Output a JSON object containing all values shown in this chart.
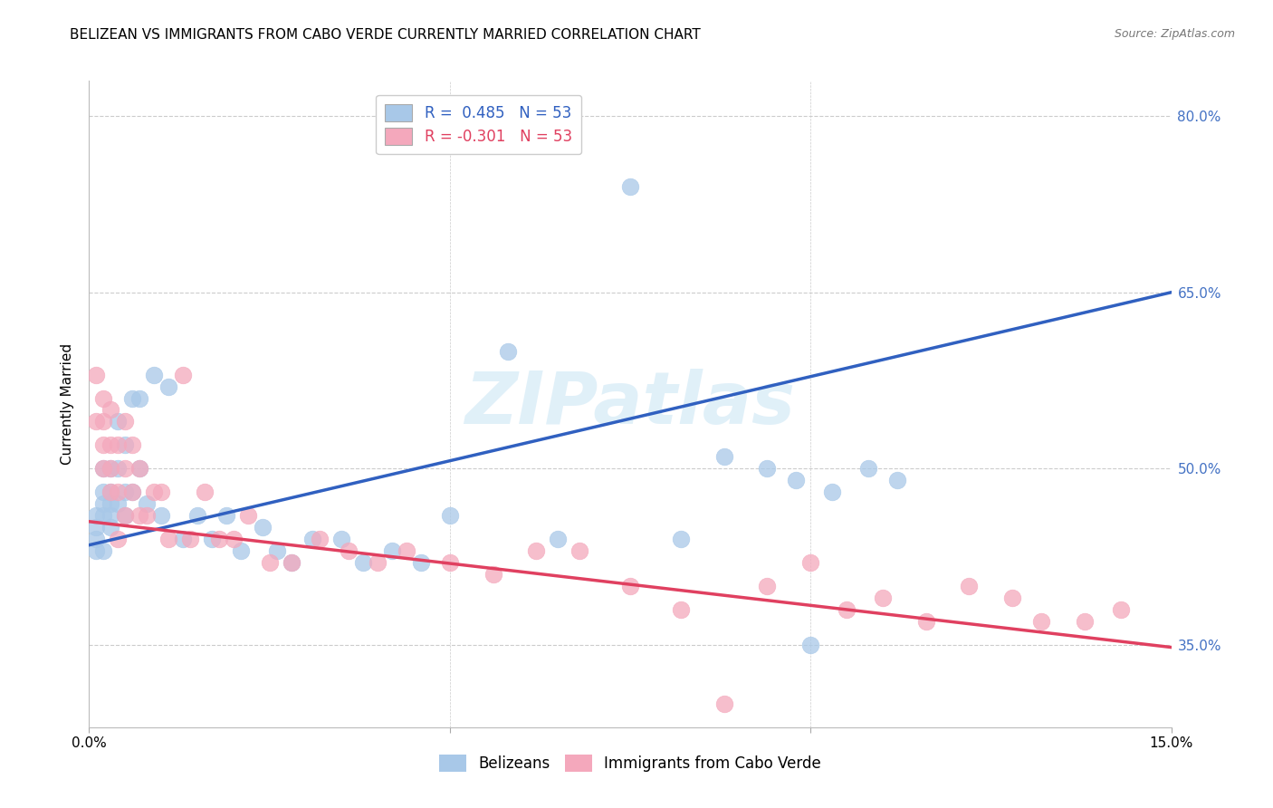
{
  "title": "BELIZEAN VS IMMIGRANTS FROM CABO VERDE CURRENTLY MARRIED CORRELATION CHART",
  "source": "Source: ZipAtlas.com",
  "ylabel": "Currently Married",
  "xmin": 0.0,
  "xmax": 0.15,
  "ymin": 0.28,
  "ymax": 0.83,
  "legend1_label": "R =  0.485   N = 53",
  "legend2_label": "R = -0.301   N = 53",
  "legend_bottom_label1": "Belizeans",
  "legend_bottom_label2": "Immigrants from Cabo Verde",
  "blue_color": "#a8c8e8",
  "pink_color": "#f4a8bc",
  "line_blue": "#3060c0",
  "line_pink": "#e04060",
  "blue_scatter_x": [
    0.001,
    0.001,
    0.001,
    0.001,
    0.002,
    0.002,
    0.002,
    0.002,
    0.002,
    0.003,
    0.003,
    0.003,
    0.003,
    0.003,
    0.004,
    0.004,
    0.004,
    0.005,
    0.005,
    0.005,
    0.006,
    0.006,
    0.007,
    0.007,
    0.008,
    0.009,
    0.01,
    0.011,
    0.013,
    0.015,
    0.017,
    0.019,
    0.021,
    0.024,
    0.026,
    0.028,
    0.031,
    0.035,
    0.038,
    0.042,
    0.046,
    0.05,
    0.058,
    0.065,
    0.075,
    0.082,
    0.088,
    0.094,
    0.098,
    0.1,
    0.103,
    0.108,
    0.112
  ],
  "blue_scatter_y": [
    0.45,
    0.43,
    0.44,
    0.46,
    0.5,
    0.47,
    0.46,
    0.43,
    0.48,
    0.47,
    0.46,
    0.45,
    0.5,
    0.48,
    0.54,
    0.5,
    0.47,
    0.52,
    0.48,
    0.46,
    0.56,
    0.48,
    0.5,
    0.56,
    0.47,
    0.58,
    0.46,
    0.57,
    0.44,
    0.46,
    0.44,
    0.46,
    0.43,
    0.45,
    0.43,
    0.42,
    0.44,
    0.44,
    0.42,
    0.43,
    0.42,
    0.46,
    0.6,
    0.44,
    0.74,
    0.44,
    0.51,
    0.5,
    0.49,
    0.35,
    0.48,
    0.5,
    0.49
  ],
  "pink_scatter_x": [
    0.001,
    0.001,
    0.002,
    0.002,
    0.002,
    0.002,
    0.003,
    0.003,
    0.003,
    0.003,
    0.004,
    0.004,
    0.004,
    0.005,
    0.005,
    0.005,
    0.006,
    0.006,
    0.007,
    0.007,
    0.008,
    0.009,
    0.01,
    0.011,
    0.013,
    0.014,
    0.016,
    0.018,
    0.02,
    0.022,
    0.025,
    0.028,
    0.032,
    0.036,
    0.04,
    0.044,
    0.05,
    0.056,
    0.062,
    0.068,
    0.075,
    0.082,
    0.088,
    0.094,
    0.1,
    0.105,
    0.11,
    0.116,
    0.122,
    0.128,
    0.132,
    0.138,
    0.143
  ],
  "pink_scatter_y": [
    0.58,
    0.54,
    0.56,
    0.52,
    0.5,
    0.54,
    0.52,
    0.48,
    0.5,
    0.55,
    0.52,
    0.48,
    0.44,
    0.46,
    0.5,
    0.54,
    0.48,
    0.52,
    0.5,
    0.46,
    0.46,
    0.48,
    0.48,
    0.44,
    0.58,
    0.44,
    0.48,
    0.44,
    0.44,
    0.46,
    0.42,
    0.42,
    0.44,
    0.43,
    0.42,
    0.43,
    0.42,
    0.41,
    0.43,
    0.43,
    0.4,
    0.38,
    0.3,
    0.4,
    0.42,
    0.38,
    0.39,
    0.37,
    0.4,
    0.39,
    0.37,
    0.37,
    0.38
  ],
  "blue_line_x": [
    0.0,
    0.15
  ],
  "blue_line_y": [
    0.435,
    0.65
  ],
  "pink_line_x": [
    0.0,
    0.15
  ],
  "pink_line_y": [
    0.455,
    0.348
  ],
  "grid_color": "#cccccc",
  "watermark_text": "ZIPatlas",
  "background_color": "#ffffff",
  "title_fontsize": 11,
  "axis_label_fontsize": 10,
  "tick_fontsize": 11,
  "right_tick_color": "#4472c4"
}
